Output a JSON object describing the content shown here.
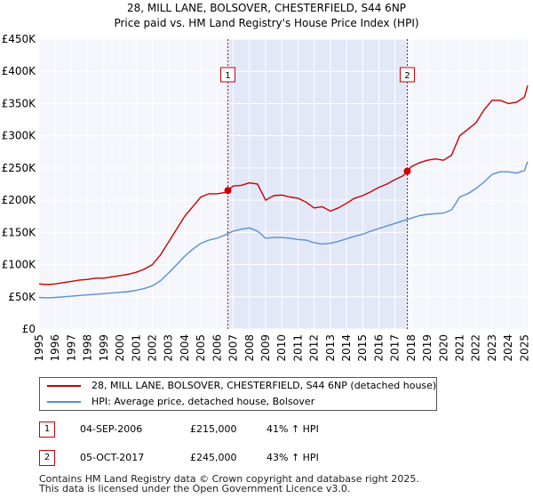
{
  "chart_data": {
    "type": "line",
    "title": "28, MILL LANE, BOLSOVER, CHESTERFIELD, S44 6NP",
    "subtitle": "Price paid vs. HM Land Registry's House Price Index (HPI)",
    "xlabel": "",
    "ylabel": "",
    "xlim": [
      1995,
      2025.2
    ],
    "ylim": [
      0,
      450000
    ],
    "y_ticks": [
      {
        "value": 0,
        "label": "£0"
      },
      {
        "value": 50000,
        "label": "£50K"
      },
      {
        "value": 100000,
        "label": "£100K"
      },
      {
        "value": 150000,
        "label": "£150K"
      },
      {
        "value": 200000,
        "label": "£200K"
      },
      {
        "value": 250000,
        "label": "£250K"
      },
      {
        "value": 300000,
        "label": "£300K"
      },
      {
        "value": 350000,
        "label": "£350K"
      },
      {
        "value": 400000,
        "label": "£400K"
      },
      {
        "value": 450000,
        "label": "£450K"
      }
    ],
    "x_ticks": [
      "1995",
      "1996",
      "1997",
      "1998",
      "1999",
      "2000",
      "2001",
      "2002",
      "2003",
      "2004",
      "2005",
      "2006",
      "2007",
      "2008",
      "2009",
      "2010",
      "2011",
      "2012",
      "2013",
      "2014",
      "2015",
      "2016",
      "2017",
      "2018",
      "2019",
      "2020",
      "2021",
      "2022",
      "2023",
      "2024",
      "2025"
    ],
    "grid": true,
    "shaded_range": [
      2006.67,
      2017.76
    ],
    "series": [
      {
        "name": "28, MILL LANE, BOLSOVER, CHESTERFIELD, S44 6NP (detached house)",
        "color": "#cc0000",
        "x": [
          1995,
          1995.5,
          1996,
          1996.5,
          1997,
          1997.5,
          1998,
          1998.5,
          1999,
          1999.5,
          2000,
          2000.5,
          2001,
          2001.5,
          2002,
          2002.5,
          2003,
          2003.5,
          2004,
          2004.5,
          2005,
          2005.5,
          2006,
          2006.5,
          2006.67,
          2007,
          2007.5,
          2008,
          2008.5,
          2009,
          2009.5,
          2010,
          2010.5,
          2011,
          2011.5,
          2012,
          2012.5,
          2013,
          2013.5,
          2014,
          2014.5,
          2015,
          2015.5,
          2016,
          2016.5,
          2017,
          2017.5,
          2017.76,
          2018,
          2018.5,
          2019,
          2019.5,
          2020,
          2020.5,
          2021,
          2021.5,
          2022,
          2022.5,
          2023,
          2023.5,
          2024,
          2024.5,
          2025,
          2025.2
        ],
        "values": [
          70000,
          69000,
          70000,
          72000,
          74000,
          76000,
          77000,
          79000,
          79000,
          81000,
          83000,
          85000,
          88000,
          93000,
          100000,
          115000,
          135000,
          155000,
          175000,
          190000,
          205000,
          210000,
          210000,
          212000,
          215000,
          222000,
          223000,
          227000,
          225000,
          200000,
          207000,
          208000,
          205000,
          203000,
          197000,
          188000,
          190000,
          183000,
          188000,
          195000,
          203000,
          207000,
          213000,
          220000,
          225000,
          232000,
          238000,
          245000,
          252000,
          258000,
          262000,
          264000,
          262000,
          270000,
          300000,
          310000,
          320000,
          340000,
          355000,
          355000,
          350000,
          352000,
          360000,
          378000
        ]
      },
      {
        "name": "HPI: Average price, detached house, Bolsover",
        "color": "#5b8fd0",
        "x": [
          1995,
          1995.5,
          1996,
          1996.5,
          1997,
          1997.5,
          1998,
          1998.5,
          1999,
          1999.5,
          2000,
          2000.5,
          2001,
          2001.5,
          2002,
          2002.5,
          2003,
          2003.5,
          2004,
          2004.5,
          2005,
          2005.5,
          2006,
          2006.5,
          2007,
          2007.5,
          2008,
          2008.5,
          2009,
          2009.5,
          2010,
          2010.5,
          2011,
          2011.5,
          2012,
          2012.5,
          2013,
          2013.5,
          2014,
          2014.5,
          2015,
          2015.5,
          2016,
          2016.5,
          2017,
          2017.5,
          2018,
          2018.5,
          2019,
          2019.5,
          2020,
          2020.5,
          2021,
          2021.5,
          2022,
          2022.5,
          2023,
          2023.5,
          2024,
          2024.5,
          2025,
          2025.2
        ],
        "values": [
          49000,
          48500,
          49000,
          50000,
          51000,
          52000,
          53000,
          54000,
          55000,
          56000,
          57000,
          58000,
          60000,
          63000,
          67000,
          75000,
          87000,
          100000,
          113000,
          124000,
          133000,
          138000,
          141000,
          146000,
          152000,
          155000,
          157000,
          152000,
          141000,
          142000,
          142000,
          141000,
          139000,
          138000,
          134000,
          132000,
          133000,
          136000,
          140000,
          144000,
          147000,
          152000,
          156000,
          160000,
          164000,
          168000,
          172000,
          176000,
          178000,
          179000,
          180000,
          185000,
          205000,
          210000,
          218000,
          228000,
          240000,
          244000,
          244000,
          242000,
          246000,
          260000
        ]
      }
    ],
    "annotations": [
      {
        "label": "1",
        "x": 2006.67,
        "value": 215000
      },
      {
        "label": "2",
        "x": 2017.76,
        "value": 245000
      }
    ]
  },
  "legend": {
    "items": [
      {
        "label": "28, MILL LANE, BOLSOVER, CHESTERFIELD, S44 6NP (detached house)",
        "color": "#cc0000"
      },
      {
        "label": "HPI: Average price, detached house, Bolsover",
        "color": "#5b8fd0"
      }
    ]
  },
  "sales": [
    {
      "marker": "1",
      "date": "04-SEP-2006",
      "price": "£215,000",
      "hpi": "41% ↑ HPI"
    },
    {
      "marker": "2",
      "date": "05-OCT-2017",
      "price": "£245,000",
      "hpi": "43% ↑ HPI"
    }
  ],
  "footer": {
    "line1": "Contains HM Land Registry data © Crown copyright and database right 2025.",
    "line2": "This data is licensed under the Open Government Licence v3.0."
  }
}
